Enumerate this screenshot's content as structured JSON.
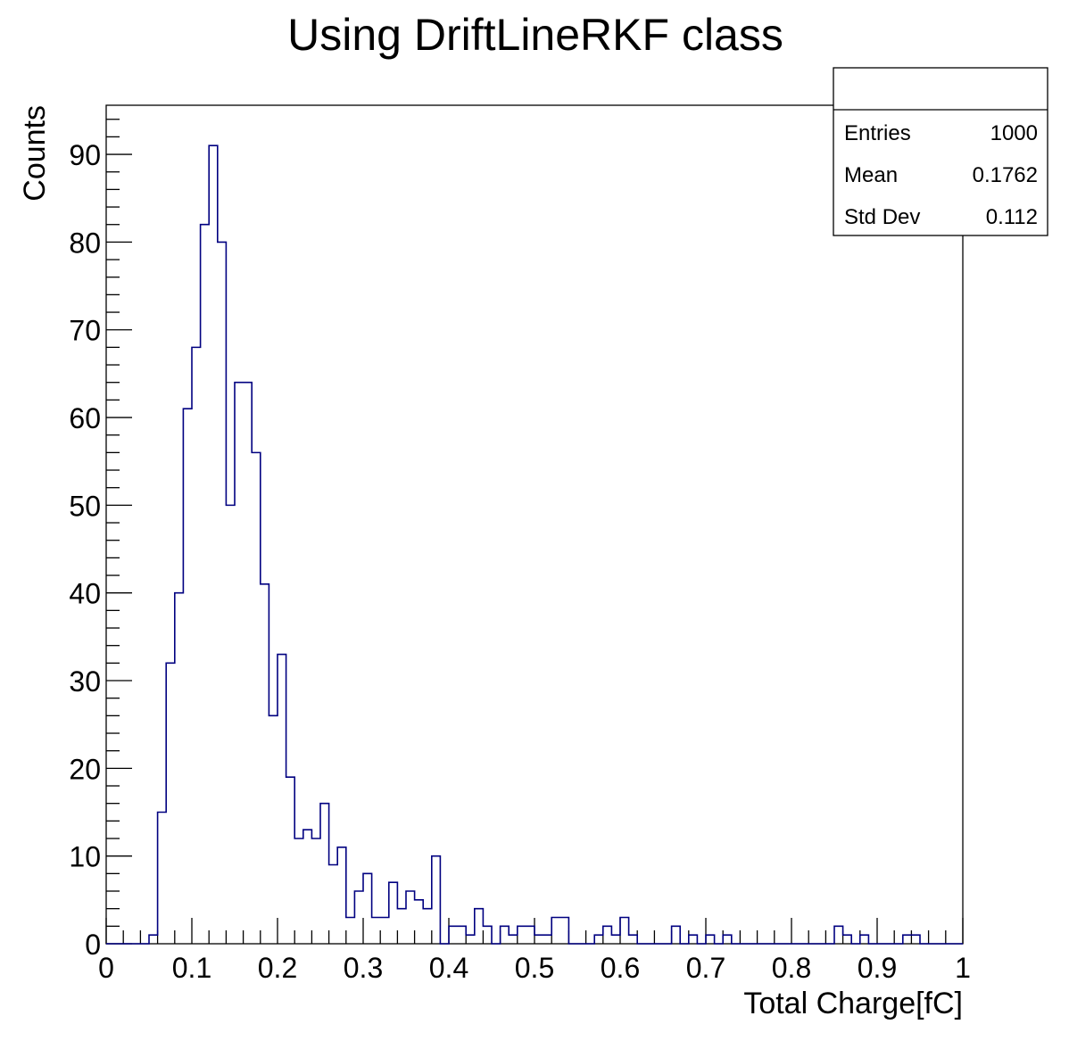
{
  "chart_data": {
    "type": "bar",
    "title": "Using DriftLineRKF class",
    "xlabel": "Total Charge[fC]",
    "ylabel": "Counts",
    "xlim": [
      0,
      1
    ],
    "ylim": [
      0,
      95.6
    ],
    "x_ticks": [
      {
        "value": 0,
        "label": "0"
      },
      {
        "value": 0.1,
        "label": "0.1"
      },
      {
        "value": 0.2,
        "label": "0.2"
      },
      {
        "value": 0.3,
        "label": "0.3"
      },
      {
        "value": 0.4,
        "label": "0.4"
      },
      {
        "value": 0.5,
        "label": "0.5"
      },
      {
        "value": 0.6,
        "label": "0.6"
      },
      {
        "value": 0.7,
        "label": "0.7"
      },
      {
        "value": 0.8,
        "label": "0.8"
      },
      {
        "value": 0.9,
        "label": "0.9"
      },
      {
        "value": 1,
        "label": "1"
      }
    ],
    "y_ticks": [
      {
        "value": 0,
        "label": "0"
      },
      {
        "value": 10,
        "label": "10"
      },
      {
        "value": 20,
        "label": "20"
      },
      {
        "value": 30,
        "label": "30"
      },
      {
        "value": 40,
        "label": "40"
      },
      {
        "value": 50,
        "label": "50"
      },
      {
        "value": 60,
        "label": "60"
      },
      {
        "value": 70,
        "label": "70"
      },
      {
        "value": 80,
        "label": "80"
      },
      {
        "value": 90,
        "label": "90"
      }
    ],
    "bin_width": 0.01,
    "bin_start": 0,
    "values": [
      0,
      0,
      0,
      0,
      0,
      1,
      15,
      32,
      40,
      61,
      68,
      82,
      91,
      80,
      50,
      64,
      64,
      56,
      41,
      26,
      33,
      19,
      12,
      13,
      12,
      16,
      9,
      11,
      3,
      6,
      8,
      3,
      3,
      7,
      4,
      6,
      5,
      4,
      10,
      0,
      2,
      2,
      1,
      4,
      2,
      0,
      2,
      1,
      2,
      2,
      1,
      1,
      3,
      3,
      0,
      0,
      0,
      1,
      2,
      1,
      3,
      1,
      0,
      0,
      0,
      0,
      2,
      0,
      1,
      0,
      1,
      0,
      1,
      0,
      0,
      0,
      0,
      0,
      0,
      0,
      0,
      0,
      0,
      0,
      0,
      2,
      1,
      0,
      1,
      0,
      0,
      0,
      0,
      1,
      1,
      0,
      0,
      0,
      0,
      0
    ],
    "grid": false,
    "legend": "none",
    "stats_box": {
      "placement": "top-right",
      "header": "",
      "rows": [
        {
          "label": "Entries",
          "value": "1000"
        },
        {
          "label": "Mean",
          "value": "0.1762"
        },
        {
          "label": "Std Dev",
          "value": "0.112"
        }
      ]
    },
    "colors": {
      "histogram_line": "#000080",
      "axis": "#000000",
      "background": "#ffffff"
    }
  }
}
